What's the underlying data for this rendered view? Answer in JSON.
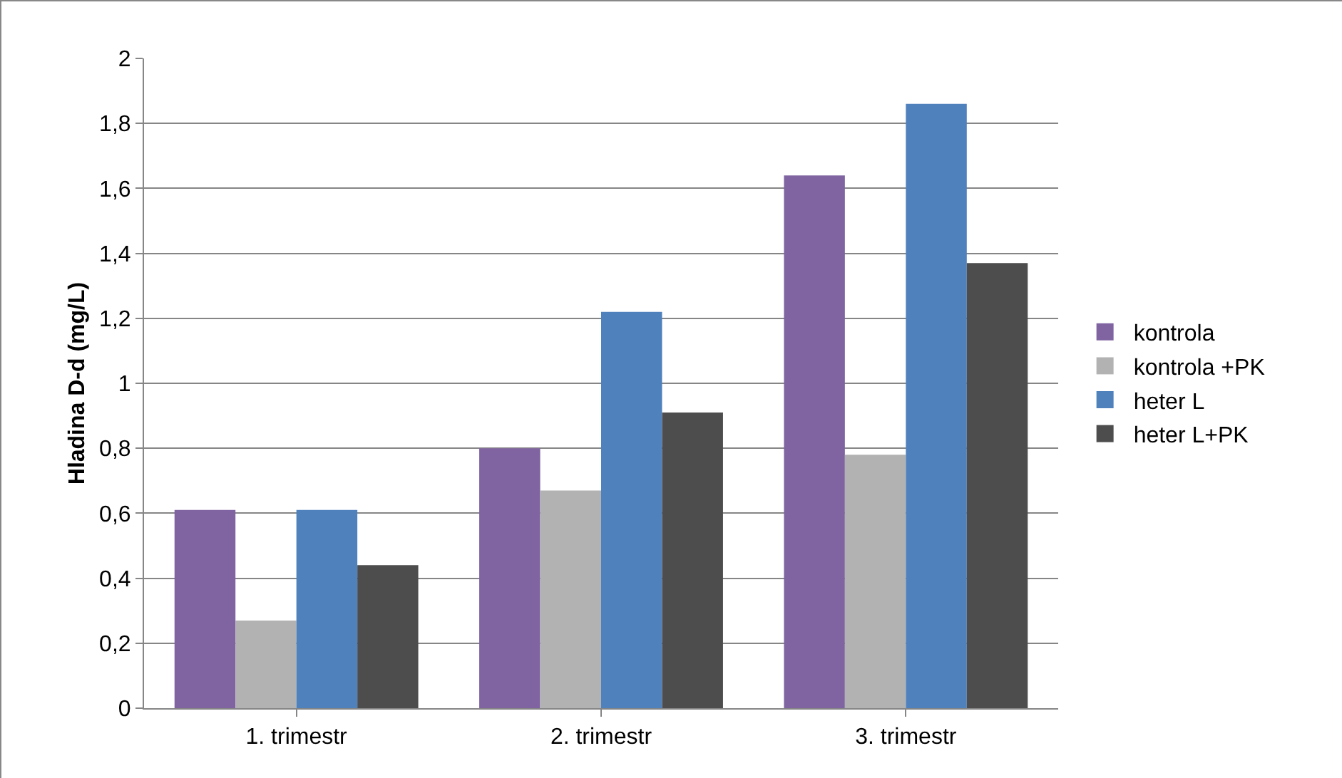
{
  "chart_data": {
    "type": "bar",
    "ylabel": "Hladina D-d (mg/L)",
    "categories": [
      "1. trimestr",
      "2. trimestr",
      "3. trimestr"
    ],
    "series": [
      {
        "name": "kontrola",
        "color": "#8064a2",
        "values": [
          0.61,
          0.8,
          1.64
        ]
      },
      {
        "name": "kontrola +PK",
        "color": "#b2b2b2",
        "values": [
          0.27,
          0.67,
          0.78
        ]
      },
      {
        "name": "heter L",
        "color": "#4f81bd",
        "values": [
          0.61,
          1.22,
          1.86
        ]
      },
      {
        "name": "heter L+PK",
        "color": "#4d4d4d",
        "values": [
          0.44,
          0.91,
          1.37
        ]
      }
    ],
    "ylim": [
      0,
      2
    ],
    "yticks": [
      0,
      {
        "value": 0.2,
        "label": "0,2"
      },
      {
        "value": 0.4,
        "label": "0,4"
      },
      {
        "value": 0.6,
        "label": "0,6"
      },
      {
        "value": 0.8,
        "label": "0,8"
      },
      1,
      {
        "value": 1.2,
        "label": "1,2"
      },
      {
        "value": 1.4,
        "label": "1,4"
      },
      {
        "value": 1.6,
        "label": "1,6"
      },
      {
        "value": 1.8,
        "label": "1,8"
      },
      2
    ],
    "grid": "y",
    "legend": "right"
  }
}
